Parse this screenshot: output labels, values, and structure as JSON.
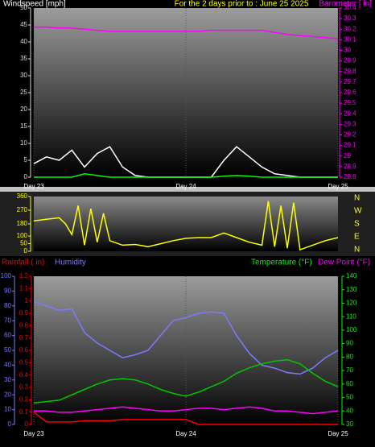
{
  "chart_data": [
    {
      "type": "line",
      "title": "For the 2 days prior to : June 25 2025",
      "xlim": [
        0,
        48
      ],
      "xticks": [
        {
          "value": 0,
          "label": "Day 23"
        },
        {
          "value": 24,
          "label": "Day 24"
        },
        {
          "value": 48,
          "label": "Day 25"
        }
      ],
      "ylim": [
        0,
        50
      ],
      "yticks": [
        0,
        5,
        10,
        15,
        20,
        25,
        30,
        35,
        40,
        45,
        50
      ],
      "y2lim": [
        28.8,
        30.4
      ],
      "y2ticks": [
        28.8,
        28.9,
        29,
        29.1,
        29.2,
        29.3,
        29.4,
        29.5,
        29.6,
        29.7,
        29.8,
        29.9,
        30,
        30.1,
        30.2,
        30.3,
        30.4
      ],
      "x": [
        0,
        2,
        4,
        6,
        8,
        10,
        12,
        14,
        16,
        18,
        20,
        22,
        24,
        26,
        28,
        30,
        32,
        34,
        36,
        38,
        40,
        42,
        44,
        46,
        48
      ],
      "series": [
        {
          "name": "Windspeed [mph]",
          "color": "#ffffff",
          "axis": "y",
          "values": [
            4,
            6,
            5,
            8,
            3,
            7,
            9,
            3,
            0.5,
            0,
            0,
            0,
            0,
            0,
            0,
            5,
            9,
            6,
            3,
            1,
            0.5,
            0,
            0,
            0,
            0
          ]
        },
        {
          "color": "#00ff00",
          "axis": "y",
          "values": [
            0,
            0,
            0,
            0,
            1,
            0.5,
            0,
            0,
            0,
            0,
            0,
            0,
            0,
            0,
            0,
            0.3,
            0.5,
            0.3,
            0,
            0,
            0,
            0,
            0,
            0,
            0
          ]
        },
        {
          "name": "Barometer [ in]",
          "color": "#ff00ff",
          "axis": "y2",
          "values": [
            30.22,
            30.22,
            30.21,
            30.21,
            30.2,
            30.19,
            30.18,
            30.18,
            30.18,
            30.18,
            30.18,
            30.18,
            30.18,
            30.18,
            30.19,
            30.19,
            30.19,
            30.19,
            30.19,
            30.17,
            30.15,
            30.14,
            30.13,
            30.12,
            30.11
          ]
        }
      ]
    },
    {
      "type": "line",
      "xlim": [
        0,
        48
      ],
      "ylim": [
        0,
        360
      ],
      "yticks": [
        0,
        50,
        100,
        180,
        270,
        360
      ],
      "compass": [
        "N",
        "W",
        "S",
        "E",
        "N"
      ],
      "x": [
        0,
        2,
        4,
        5,
        6,
        7,
        8,
        9,
        10,
        11,
        12,
        14,
        16,
        18,
        20,
        22,
        24,
        26,
        28,
        30,
        32,
        34,
        36,
        37,
        38,
        39,
        40,
        41,
        42,
        44,
        46,
        48
      ],
      "series": [
        {
          "color": "#ffff00",
          "values": [
            200,
            210,
            220,
            180,
            110,
            300,
            40,
            280,
            60,
            250,
            70,
            40,
            45,
            30,
            50,
            70,
            85,
            90,
            90,
            120,
            90,
            60,
            40,
            330,
            30,
            300,
            20,
            320,
            10,
            40,
            70,
            90
          ]
        }
      ]
    },
    {
      "type": "line",
      "xlim": [
        0,
        48
      ],
      "xticks": [
        {
          "value": 0,
          "label": "Day 23"
        },
        {
          "value": 24,
          "label": "Day 24"
        },
        {
          "value": 48,
          "label": "Day 25"
        }
      ],
      "ylim": [
        0,
        1.2
      ],
      "yticks": [
        0,
        0.1,
        0.2,
        0.3,
        0.4,
        0.5,
        0.6,
        0.7,
        0.8,
        0.9,
        1,
        1.1,
        1.2
      ],
      "y3lim": [
        0,
        100
      ],
      "y3ticks": [
        0,
        10,
        20,
        30,
        40,
        50,
        60,
        70,
        80,
        90,
        100
      ],
      "y2lim": [
        30,
        140
      ],
      "y2ticks": [
        30,
        40,
        50,
        60,
        70,
        80,
        90,
        100,
        110,
        120,
        130,
        140
      ],
      "x": [
        0,
        2,
        4,
        6,
        8,
        10,
        12,
        14,
        16,
        18,
        20,
        22,
        24,
        26,
        28,
        30,
        32,
        34,
        36,
        38,
        40,
        42,
        44,
        46,
        48
      ],
      "series": [
        {
          "name": "Rainfall (.in)",
          "color": "#ff0000",
          "axis": "y",
          "values": [
            0.1,
            0.02,
            0.02,
            0.02,
            0.03,
            0.03,
            0.03,
            0.04,
            0.04,
            0.04,
            0.04,
            0.04,
            0.04,
            0,
            0,
            0,
            0,
            0,
            0,
            0,
            0,
            0,
            0,
            0,
            0
          ]
        },
        {
          "name": "Humidity",
          "color": "#7b7bff",
          "axis": "y3",
          "values": [
            83,
            80,
            77,
            78,
            62,
            55,
            50,
            45,
            47,
            50,
            60,
            70,
            72,
            75,
            76,
            75,
            60,
            48,
            40,
            38,
            35,
            34,
            38,
            45,
            50
          ]
        },
        {
          "name": "Temperature (°F)",
          "color": "#00c800",
          "axis": "y2",
          "values": [
            46,
            47,
            48,
            52,
            56,
            60,
            63,
            64,
            63,
            60,
            56,
            53,
            51,
            54,
            58,
            62,
            68,
            72,
            75,
            77,
            78,
            75,
            68,
            62,
            58
          ]
        },
        {
          "name": "Dew Point (°F)",
          "color": "#ff00ff",
          "axis": "y2",
          "values": [
            40,
            40,
            39,
            39,
            40,
            41,
            42,
            43,
            42,
            41,
            40,
            40,
            41,
            42,
            42,
            41,
            42,
            43,
            42,
            40,
            40,
            39,
            38,
            39,
            40
          ]
        }
      ]
    }
  ]
}
